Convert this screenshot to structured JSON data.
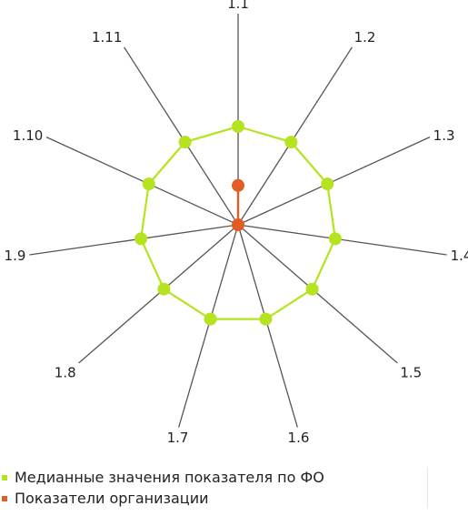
{
  "chart_data": {
    "type": "radar",
    "axes": [
      "1.1",
      "1.2",
      "1.3",
      "1.4",
      "1.5",
      "1.6",
      "1.7",
      "1.8",
      "1.9",
      "1.10",
      "1.11"
    ],
    "series": [
      {
        "name": "Медианные значения показателя по ФО",
        "color": "#b5e31f",
        "values": [
          1,
          1,
          1,
          1,
          1,
          1,
          1,
          1,
          1,
          1,
          1
        ]
      },
      {
        "name": "Показатели организации",
        "color": "#e25c24",
        "values": [
          0.4,
          0,
          0,
          0,
          0,
          0,
          0,
          0,
          0,
          0,
          0
        ]
      }
    ],
    "range": [
      0,
      1
    ],
    "grid": false,
    "legend_position": "bottom-left"
  }
}
